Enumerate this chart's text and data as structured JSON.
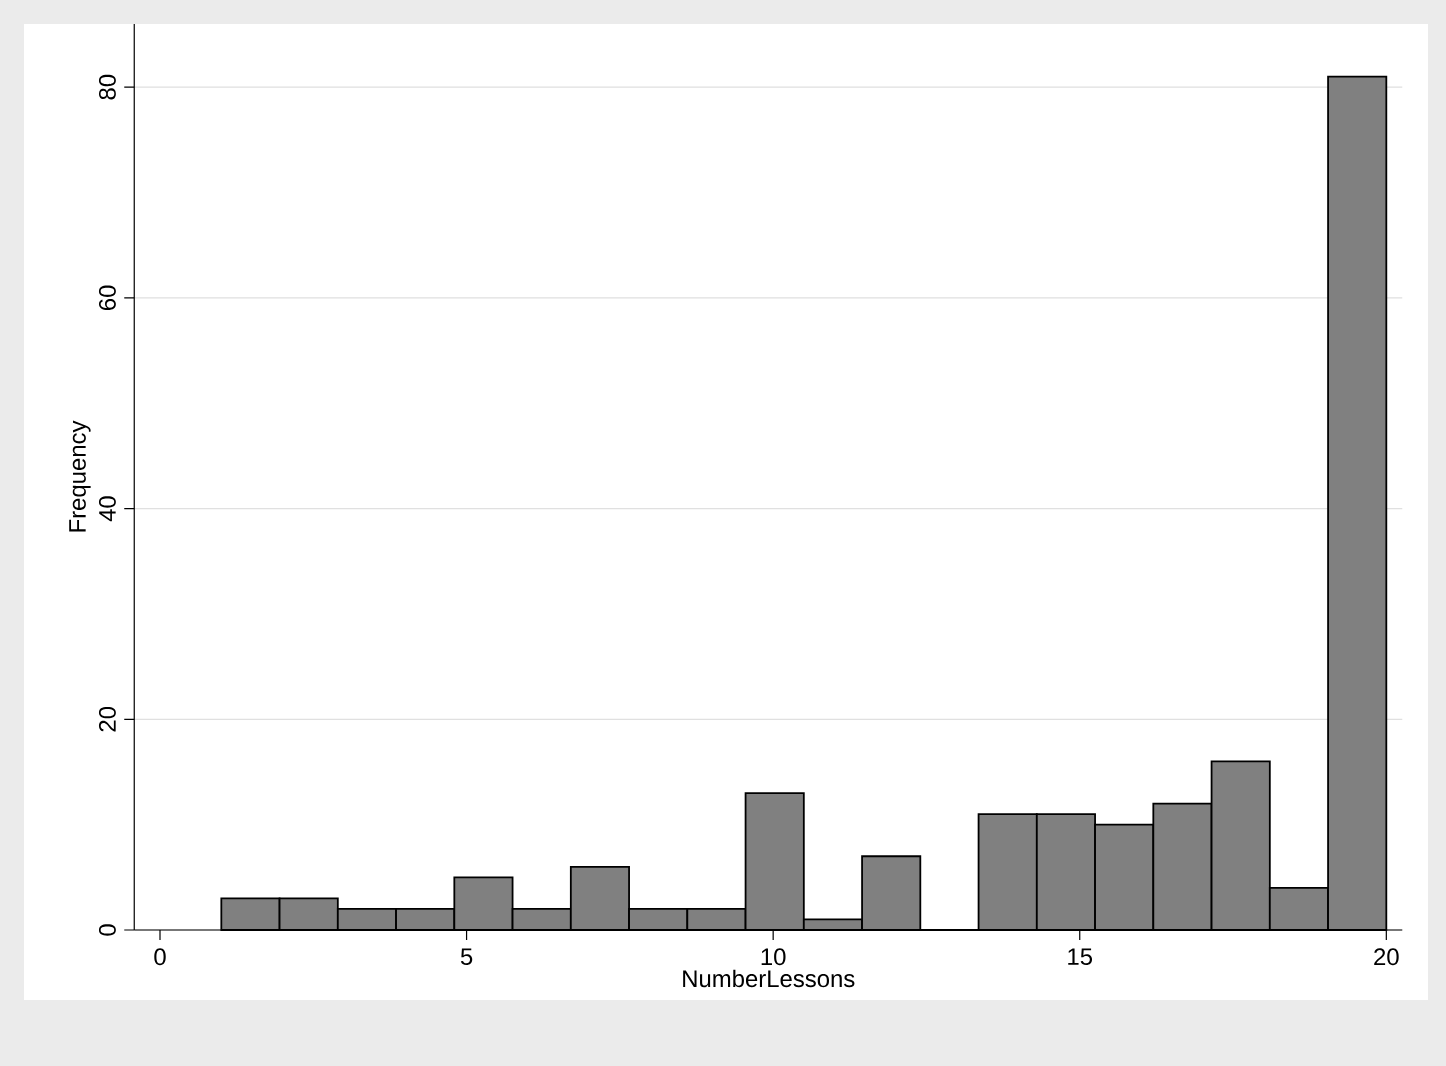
{
  "chart_data": {
    "type": "histogram",
    "xlabel": "NumberLessons",
    "ylabel": "Frequency",
    "bins": [
      1,
      1.95,
      2.9,
      3.85,
      4.8,
      5.75,
      6.7,
      7.65,
      8.6,
      9.55,
      10.5,
      11.45,
      12.4,
      13.35,
      14.3,
      15.25,
      16.2,
      17.15,
      18.1,
      19.05,
      20
    ],
    "values": [
      3,
      3,
      2,
      2,
      5,
      2,
      6,
      2,
      2,
      13,
      1,
      7,
      0,
      11,
      11,
      10,
      12,
      16,
      4,
      81
    ],
    "color": "#808080",
    "xlim": [
      -0.42,
      20.26
    ],
    "ylim": [
      0,
      86
    ],
    "xticks": [
      0,
      5,
      10,
      15,
      20
    ],
    "yticks": [
      0,
      20,
      40,
      60,
      80
    ],
    "grid": "y"
  }
}
